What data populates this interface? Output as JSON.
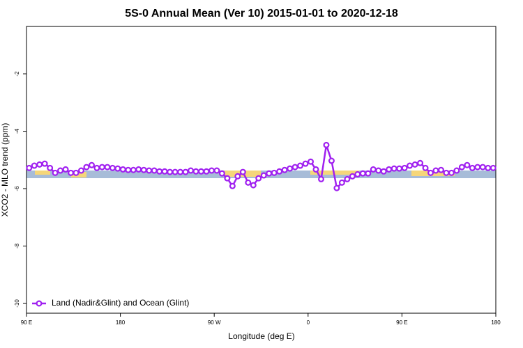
{
  "chart_data": {
    "type": "line",
    "title": "5S-0 Annual Mean (Ver 10)   2015-01-01 to 2020-12-18",
    "x_label": "Longitude (deg E)",
    "y_label": "XCO2 - MLO trend (ppm)",
    "x": [
      92.5,
      97.5,
      102.5,
      107.5,
      112.5,
      117.5,
      122.5,
      127.5,
      132.5,
      137.5,
      142.5,
      147.5,
      152.5,
      157.5,
      162.5,
      167.5,
      172.5,
      177.5,
      182.5,
      187.5,
      192.5,
      197.5,
      202.5,
      207.5,
      212.5,
      217.5,
      222.5,
      227.5,
      232.5,
      237.5,
      242.5,
      247.5,
      252.5,
      257.5,
      262.5,
      267.5,
      272.5,
      277.5,
      282.5,
      287.5,
      292.5,
      297.5,
      302.5,
      307.5,
      312.5,
      317.5,
      322.5,
      327.5,
      332.5,
      337.5,
      342.5,
      347.5,
      352.5,
      357.5,
      362.5,
      367.5,
      372.5,
      377.5,
      382.5,
      387.5,
      392.5,
      397.5,
      402.5,
      407.5,
      412.5,
      417.5,
      422.5,
      427.5,
      432.5,
      437.5,
      442.5,
      447.5,
      452.5,
      457.5,
      462.5,
      467.5,
      472.5,
      477.5,
      482.5,
      487.5,
      492.5,
      497.5,
      502.5,
      507.5,
      512.5,
      517.5,
      522.5,
      527.5,
      532.5,
      537.5
    ],
    "series": [
      {
        "name": "Land (Nadir&Glint) and Ocean (Glint)",
        "color": "#a020f0",
        "values": [
          -5.28,
          -5.2,
          -5.16,
          -5.13,
          -5.28,
          -5.45,
          -5.37,
          -5.33,
          -5.45,
          -5.45,
          -5.37,
          -5.25,
          -5.18,
          -5.28,
          -5.25,
          -5.25,
          -5.28,
          -5.3,
          -5.33,
          -5.35,
          -5.35,
          -5.33,
          -5.35,
          -5.37,
          -5.37,
          -5.4,
          -5.4,
          -5.42,
          -5.42,
          -5.42,
          -5.42,
          -5.37,
          -5.4,
          -5.4,
          -5.4,
          -5.37,
          -5.37,
          -5.47,
          -5.64,
          -5.91,
          -5.57,
          -5.42,
          -5.79,
          -5.88,
          -5.64,
          -5.54,
          -5.47,
          -5.45,
          -5.4,
          -5.35,
          -5.3,
          -5.25,
          -5.2,
          -5.13,
          -5.06,
          -5.33,
          -5.67,
          -4.48,
          -5.03,
          -5.98,
          -5.79,
          -5.67,
          -5.57,
          -5.5,
          -5.47,
          -5.47,
          -5.33,
          -5.37,
          -5.4,
          -5.33,
          -5.3,
          -5.3,
          -5.28,
          -5.2,
          -5.16,
          -5.11,
          -5.28,
          -5.45,
          -5.37,
          -5.35,
          -5.45,
          -5.45,
          -5.37,
          -5.25,
          -5.18,
          -5.28,
          -5.25,
          -5.25,
          -5.28,
          -5.28
        ]
      }
    ],
    "xlim": [
      90,
      540
    ],
    "xticks": [
      {
        "value": 90,
        "label": "90 E"
      },
      180,
      {
        "value": 270,
        "label": "90 W"
      },
      {
        "value": 360,
        "label": "0"
      },
      {
        "value": 450,
        "label": "90 E"
      },
      {
        "value": 540,
        "label": "180"
      }
    ],
    "ylim": [
      -10.34,
      -0.35
    ],
    "yticks": [
      -2,
      -4,
      -6,
      -8,
      -10
    ],
    "legend": "bottom-left"
  }
}
